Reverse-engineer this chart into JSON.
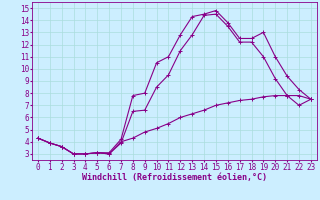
{
  "xlabel": "Windchill (Refroidissement éolien,°C)",
  "bg_color": "#cceeff",
  "line_color": "#880088",
  "xlim": [
    -0.5,
    23.5
  ],
  "ylim": [
    2.5,
    15.5
  ],
  "xticks": [
    0,
    1,
    2,
    3,
    4,
    5,
    6,
    7,
    8,
    9,
    10,
    11,
    12,
    13,
    14,
    15,
    16,
    17,
    18,
    19,
    20,
    21,
    22,
    23
  ],
  "yticks": [
    3,
    4,
    5,
    6,
    7,
    8,
    9,
    10,
    11,
    12,
    13,
    14,
    15
  ],
  "curve1_x": [
    0,
    1,
    2,
    3,
    4,
    5,
    6,
    7,
    8,
    9,
    10,
    11,
    12,
    13,
    14,
    15,
    16,
    17,
    18,
    19,
    20,
    21,
    22,
    23
  ],
  "curve1_y": [
    4.3,
    3.9,
    3.6,
    3.0,
    3.0,
    3.1,
    3.0,
    4.0,
    4.3,
    4.8,
    5.1,
    5.5,
    6.0,
    6.3,
    6.6,
    7.0,
    7.2,
    7.4,
    7.5,
    7.7,
    7.8,
    7.8,
    7.8,
    7.5
  ],
  "curve2_x": [
    0,
    1,
    2,
    3,
    4,
    5,
    6,
    7,
    8,
    9,
    10,
    11,
    12,
    13,
    14,
    15,
    16,
    17,
    18,
    19,
    20,
    21,
    22,
    23
  ],
  "curve2_y": [
    4.3,
    3.9,
    3.6,
    3.0,
    3.0,
    3.1,
    3.1,
    4.2,
    7.8,
    8.0,
    10.5,
    11.0,
    12.8,
    14.3,
    14.5,
    14.8,
    13.8,
    12.5,
    12.5,
    13.0,
    11.0,
    9.4,
    8.3,
    7.5
  ],
  "curve3_x": [
    0,
    1,
    2,
    3,
    4,
    5,
    6,
    7,
    8,
    9,
    10,
    11,
    12,
    13,
    14,
    15,
    16,
    17,
    18,
    19,
    20,
    21,
    22,
    23
  ],
  "curve3_y": [
    4.3,
    3.9,
    3.6,
    3.0,
    3.0,
    3.1,
    3.0,
    3.9,
    6.5,
    6.6,
    8.5,
    9.5,
    11.5,
    12.8,
    14.4,
    14.5,
    13.5,
    12.2,
    12.2,
    11.0,
    9.2,
    7.8,
    7.0,
    7.5
  ],
  "tick_fontsize": 5.5,
  "xlabel_fontsize": 6.0,
  "grid_color": "#aadddd",
  "grid_linewidth": 0.5,
  "line_width": 0.8,
  "marker_size": 3.0
}
